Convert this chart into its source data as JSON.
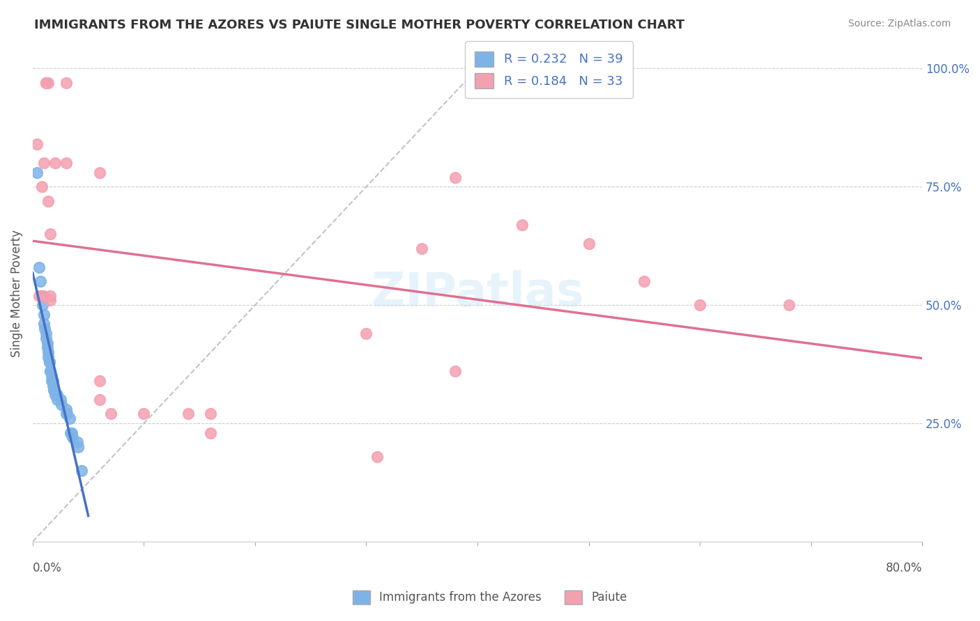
{
  "title": "IMMIGRANTS FROM THE AZORES VS PAIUTE SINGLE MOTHER POVERTY CORRELATION CHART",
  "source": "Source: ZipAtlas.com",
  "ylabel": "Single Mother Poverty",
  "ytick_labels": [
    "25.0%",
    "50.0%",
    "75.0%",
    "100.0%"
  ],
  "ytick_values": [
    0.25,
    0.5,
    0.75,
    1.0
  ],
  "xmin": 0.0,
  "xmax": 0.8,
  "ymin": 0.0,
  "ymax": 1.05,
  "legend1_R": "0.232",
  "legend1_N": "39",
  "legend2_R": "0.184",
  "legend2_N": "33",
  "legend_label1": "Immigrants from the Azores",
  "legend_label2": "Paiute",
  "blue_color": "#7eb3e8",
  "pink_color": "#f4a0b0",
  "blue_line_color": "#4472c4",
  "pink_line_color": "#e07090",
  "blue_scatter": [
    [
      0.004,
      0.78
    ],
    [
      0.006,
      0.58
    ],
    [
      0.007,
      0.55
    ],
    [
      0.008,
      0.52
    ],
    [
      0.009,
      0.5
    ],
    [
      0.01,
      0.48
    ],
    [
      0.01,
      0.46
    ],
    [
      0.011,
      0.45
    ],
    [
      0.012,
      0.44
    ],
    [
      0.012,
      0.43
    ],
    [
      0.013,
      0.42
    ],
    [
      0.013,
      0.41
    ],
    [
      0.014,
      0.4
    ],
    [
      0.014,
      0.39
    ],
    [
      0.015,
      0.38
    ],
    [
      0.015,
      0.38
    ],
    [
      0.016,
      0.36
    ],
    [
      0.016,
      0.36
    ],
    [
      0.017,
      0.35
    ],
    [
      0.017,
      0.34
    ],
    [
      0.018,
      0.34
    ],
    [
      0.018,
      0.33
    ],
    [
      0.019,
      0.32
    ],
    [
      0.019,
      0.32
    ],
    [
      0.02,
      0.31
    ],
    [
      0.022,
      0.31
    ],
    [
      0.022,
      0.3
    ],
    [
      0.025,
      0.3
    ],
    [
      0.026,
      0.29
    ],
    [
      0.03,
      0.28
    ],
    [
      0.03,
      0.27
    ],
    [
      0.031,
      0.27
    ],
    [
      0.033,
      0.26
    ],
    [
      0.034,
      0.23
    ],
    [
      0.035,
      0.23
    ],
    [
      0.036,
      0.22
    ],
    [
      0.04,
      0.21
    ],
    [
      0.041,
      0.2
    ],
    [
      0.044,
      0.15
    ]
  ],
  "pink_scatter": [
    [
      0.012,
      0.97
    ],
    [
      0.012,
      0.97
    ],
    [
      0.014,
      0.97
    ],
    [
      0.03,
      0.97
    ],
    [
      0.004,
      0.84
    ],
    [
      0.01,
      0.8
    ],
    [
      0.02,
      0.8
    ],
    [
      0.03,
      0.8
    ],
    [
      0.06,
      0.78
    ],
    [
      0.008,
      0.75
    ],
    [
      0.014,
      0.72
    ],
    [
      0.016,
      0.65
    ],
    [
      0.38,
      0.77
    ],
    [
      0.44,
      0.67
    ],
    [
      0.35,
      0.62
    ],
    [
      0.006,
      0.52
    ],
    [
      0.01,
      0.52
    ],
    [
      0.016,
      0.52
    ],
    [
      0.016,
      0.51
    ],
    [
      0.5,
      0.63
    ],
    [
      0.55,
      0.55
    ],
    [
      0.6,
      0.5
    ],
    [
      0.68,
      0.5
    ],
    [
      0.3,
      0.44
    ],
    [
      0.38,
      0.36
    ],
    [
      0.06,
      0.34
    ],
    [
      0.06,
      0.3
    ],
    [
      0.07,
      0.27
    ],
    [
      0.1,
      0.27
    ],
    [
      0.14,
      0.27
    ],
    [
      0.16,
      0.27
    ],
    [
      0.16,
      0.23
    ],
    [
      0.31,
      0.18
    ]
  ]
}
